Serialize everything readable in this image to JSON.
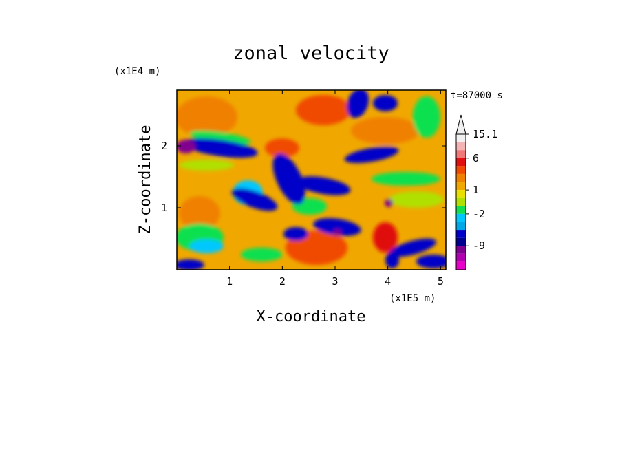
{
  "chart_data": {
    "type": "heatmap",
    "title": "zonal velocity",
    "xlabel": "X-coordinate",
    "ylabel": "Z-coordinate",
    "x_unit": "(x1E5 m)",
    "y_unit": "(x1E4 m)",
    "time_label": "t=87000 s",
    "xlim": [
      0.0,
      5.1
    ],
    "ylim": [
      0.0,
      2.9
    ],
    "x_ticks": [
      {
        "value": 1,
        "label": "1"
      },
      {
        "value": 2,
        "label": "2"
      },
      {
        "value": 3,
        "label": "3"
      },
      {
        "value": 4,
        "label": "4"
      },
      {
        "value": 5,
        "label": "5"
      }
    ],
    "y_ticks": [
      {
        "value": 1,
        "label": "1"
      },
      {
        "value": 2,
        "label": "2"
      }
    ],
    "colorbar": {
      "colors": [
        "#f0f0f0",
        "#f5b4b4",
        "#f07878",
        "#e01010",
        "#f04a00",
        "#f08000",
        "#f0a800",
        "#e8e000",
        "#b0e000",
        "#10e050",
        "#00c8ff",
        "#00a8e8",
        "#0000c8",
        "#000090",
        "#800090",
        "#b000b0",
        "#e800c8"
      ],
      "labels": [
        {
          "text": "15.1",
          "boundary": 0
        },
        {
          "text": "6",
          "boundary": 3
        },
        {
          "text": "1",
          "boundary": 7
        },
        {
          "text": "-2",
          "boundary": 10
        },
        {
          "text": "-9",
          "boundary": 14
        }
      ],
      "extend_top": true
    }
  }
}
